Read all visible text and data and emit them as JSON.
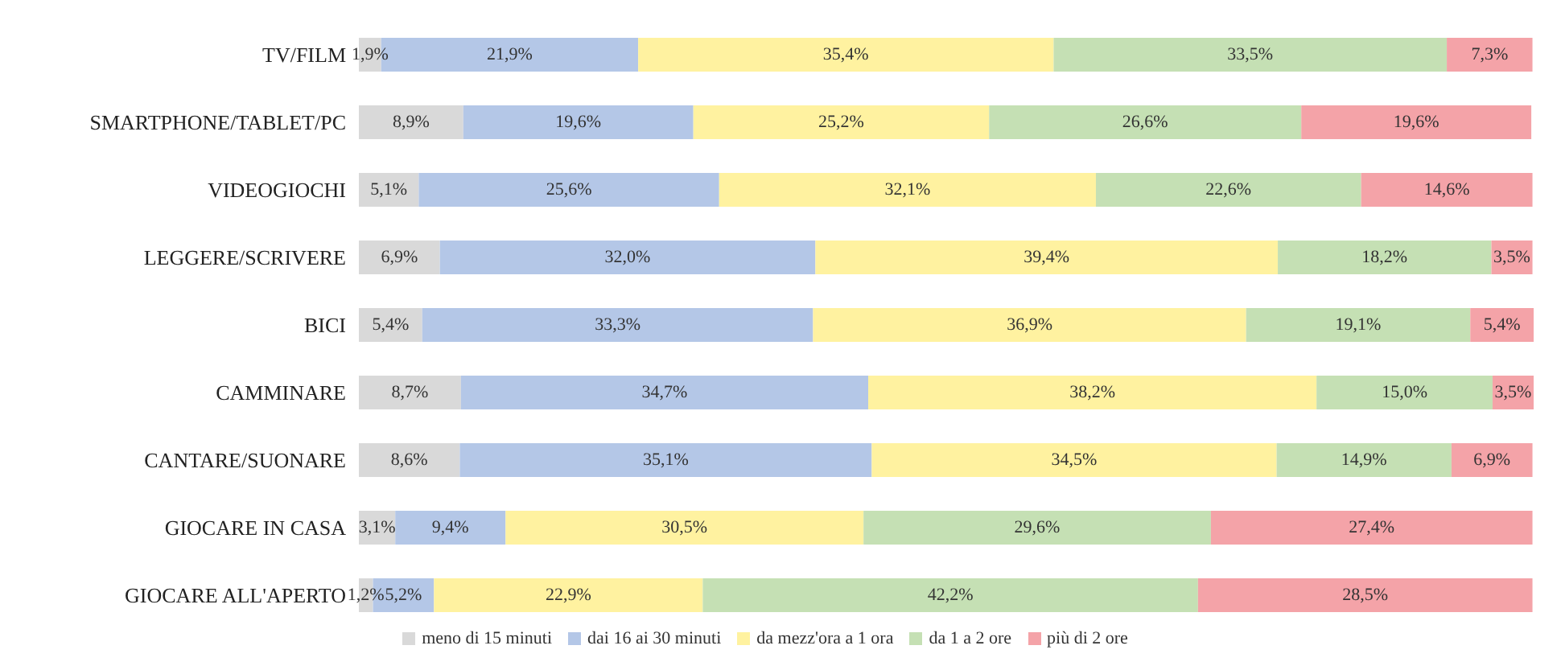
{
  "chart_data": {
    "type": "bar",
    "orientation": "horizontal",
    "stacked": true,
    "legend": "bottom",
    "categories": [
      "TV/FILM",
      "SMARTPHONE/TABLET/PC",
      "VIDEOGIOCHI",
      "LEGGERE/SCRIVERE",
      "BICI",
      "CAMMINARE",
      "CANTARE/SUONARE",
      "GIOCARE IN CASA",
      "GIOCARE ALL'APERTO"
    ],
    "series": [
      {
        "name": "meno di 15 minuti",
        "color": "#d9d9d9",
        "values": [
          1.9,
          8.9,
          5.1,
          6.9,
          5.4,
          8.7,
          8.6,
          3.1,
          1.2
        ],
        "value_labels": [
          "1,9%",
          "8,9%",
          "5,1%",
          "6,9%",
          "5,4%",
          "8,7%",
          "8,6%",
          "3,1%",
          "1,2%"
        ]
      },
      {
        "name": "dai 16 ai 30 minuti",
        "color": "#b4c7e7",
        "values": [
          21.9,
          19.6,
          25.6,
          32.0,
          33.3,
          34.7,
          35.1,
          9.4,
          5.2
        ],
        "value_labels": [
          "21,9%",
          "19,6%",
          "25,6%",
          "32,0%",
          "33,3%",
          "34,7%",
          "35,1%",
          "9,4%",
          "5,2%"
        ]
      },
      {
        "name": "da mezz'ora a 1 ora",
        "color": "#fff2a0",
        "values": [
          35.4,
          25.2,
          32.1,
          39.4,
          36.9,
          38.2,
          34.5,
          30.5,
          22.9
        ],
        "value_labels": [
          "35,4%",
          "25,2%",
          "32,1%",
          "39,4%",
          "36,9%",
          "38,2%",
          "34,5%",
          "30,5%",
          "22,9%"
        ]
      },
      {
        "name": "da 1 a 2 ore",
        "color": "#c5e0b4",
        "values": [
          33.5,
          26.6,
          22.6,
          18.2,
          19.1,
          15.0,
          14.9,
          29.6,
          42.2
        ],
        "value_labels": [
          "33,5%",
          "26,6%",
          "22,6%",
          "18,2%",
          "19,1%",
          "15,0%",
          "14,9%",
          "29,6%",
          "42,2%"
        ]
      },
      {
        "name": "più di 2 ore",
        "color": "#f4a3a8",
        "values": [
          7.3,
          19.6,
          14.6,
          3.5,
          5.4,
          3.5,
          6.9,
          27.4,
          28.5
        ],
        "value_labels": [
          "7,3%",
          "19,6%",
          "14,6%",
          "3,5%",
          "5,4%",
          "3,5%",
          "6,9%",
          "27,4%",
          "28,5%"
        ]
      }
    ]
  }
}
